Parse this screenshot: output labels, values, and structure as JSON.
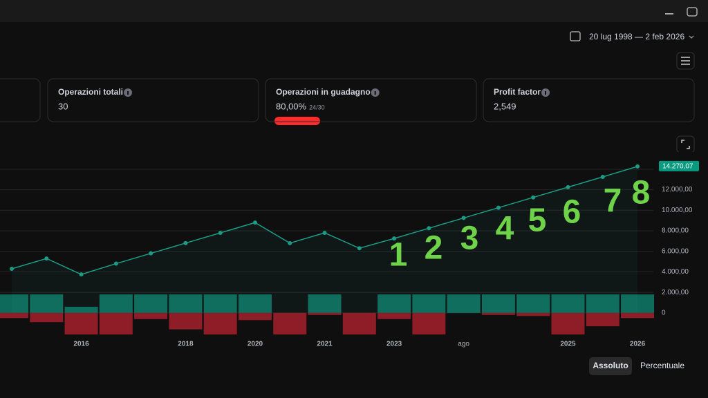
{
  "header": {
    "date_range": "20 lug 1998 — 2 feb 2026"
  },
  "stats": [
    {
      "label": "Operazioni totali",
      "value": "30"
    },
    {
      "label": "Operazioni in guadagno",
      "value": "80,00%",
      "detail": "24/30"
    },
    {
      "label": "Profit factor",
      "value": "2,549"
    }
  ],
  "chart_data": {
    "type": "line",
    "categories": [
      null,
      null,
      "2016",
      null,
      null,
      "2018",
      null,
      "2020",
      null,
      "2021",
      null,
      "2023",
      null,
      "ago",
      null,
      null,
      "2025",
      null,
      "2026"
    ],
    "series": [
      {
        "color": "#1a9c86",
        "values": [
          4300,
          5300,
          3750,
          4800,
          5800,
          6800,
          7800,
          8800,
          6800,
          7800,
          6300,
          7250,
          8250,
          9250,
          10250,
          11250,
          12250,
          13250,
          14270.07
        ],
        "value_labels": [
          null,
          null,
          null,
          null,
          null,
          null,
          null,
          null,
          null,
          null,
          null,
          null,
          null,
          null,
          null,
          null,
          null,
          null,
          "14.270,07"
        ]
      },
      {
        "color": "#0e6b5c",
        "values": [
          1800,
          1800,
          600,
          1800,
          1800,
          1800,
          1800,
          1800,
          0,
          1800,
          0,
          1800,
          1800,
          1800,
          1800,
          1800,
          1800,
          1800,
          1800
        ]
      },
      {
        "color": "#8e1d28",
        "values": [
          -500,
          -900,
          -2100,
          -2100,
          -600,
          -1600,
          -2100,
          -700,
          -2100,
          -200,
          -2100,
          -600,
          -2100,
          0,
          -200,
          -300,
          -2100,
          -1300,
          -500
        ]
      }
    ],
    "ylim": [
      -2500,
      15000
    ],
    "yticks": [
      0,
      {
        "value": 2000,
        "label": "2.000,00"
      },
      {
        "value": 4000,
        "label": "4.000,00"
      },
      {
        "value": 6000,
        "label": "6.000,00"
      },
      {
        "value": 8000,
        "label": "8.000,00"
      },
      {
        "value": 10000,
        "label": "10.000,00"
      },
      {
        "value": 12000,
        "label": "12.000,00"
      }
    ],
    "grid": true,
    "annotations": [
      "1",
      "2",
      "3",
      "4",
      "5",
      "6",
      "7",
      "8"
    ]
  },
  "buttons": [
    "Assoluto",
    "Percentuale"
  ]
}
